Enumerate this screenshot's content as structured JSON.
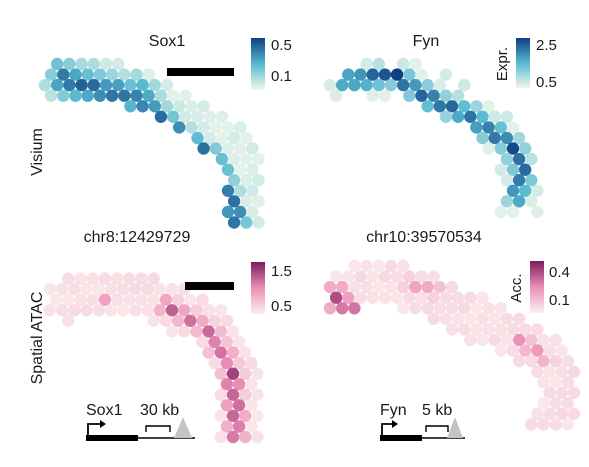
{
  "panels": [
    {
      "id": "visium-sox1",
      "title": "Sox1",
      "subtitle": "",
      "colorbar": {
        "max": "0.5",
        "min": "0.1"
      },
      "palette": "blue"
    },
    {
      "id": "visium-fyn",
      "title": "Fyn",
      "subtitle": "",
      "colorbar": {
        "max": "2.5",
        "min": "0.5",
        "label": "Expr."
      },
      "palette": "blue"
    },
    {
      "id": "atac-sox1",
      "title": "chr8:12429729",
      "subtitle": "",
      "colorbar": {
        "max": "1.5",
        "min": "0.5"
      },
      "palette": "pink",
      "track": {
        "gene": "Sox1",
        "scale": "30 kb"
      }
    },
    {
      "id": "atac-fyn",
      "title": "chr10:39570534",
      "subtitle": "",
      "colorbar": {
        "max": "0.4",
        "min": "0.1",
        "label": "Acc."
      },
      "palette": "pink",
      "track": {
        "gene": "Fyn",
        "scale": "5 kb"
      }
    }
  ],
  "row_labels": {
    "top": "Visium",
    "bottom": "Spatial ATAC"
  },
  "colors": {
    "blue_low": "#f1f8ec",
    "blue_mid": "#57b9cf",
    "blue_high": "#0e3f83",
    "pink_low": "#fbf0ef",
    "pink_mid": "#ec8fb6",
    "pink_high": "#7b1b5f",
    "scale_bar": "#000000",
    "peak": "#c4c4c4"
  }
}
